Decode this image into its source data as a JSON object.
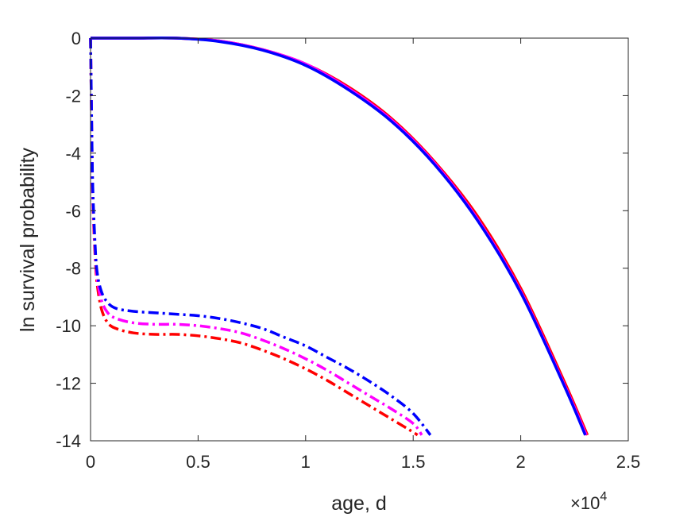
{
  "chart_data": {
    "type": "line",
    "title": "",
    "xlabel": "age, d",
    "ylabel": "ln survival probability",
    "x_exponent_label": "×10",
    "x_exponent_power": "4",
    "xlim": [
      0,
      25000
    ],
    "ylim": [
      -14,
      0
    ],
    "grid": false,
    "legend": "none",
    "xtick_labels": [
      "0",
      "0.5",
      "1",
      "1.5",
      "2",
      "2.5"
    ],
    "xtick_values": [
      0,
      5000,
      10000,
      15000,
      20000,
      25000
    ],
    "ytick_labels": [
      "0",
      "-2",
      "-4",
      "-6",
      "-8",
      "-10",
      "-12",
      "-14"
    ],
    "ytick_values": [
      0,
      -2,
      -4,
      -6,
      -8,
      -10,
      -12,
      -14
    ],
    "series": [
      {
        "color": "#ff0000",
        "style": "solid",
        "x": [
          0,
          2000,
          4000,
          6000,
          8000,
          10000,
          12000,
          14000,
          16000,
          18000,
          20000,
          22000,
          23100
        ],
        "y": [
          0,
          0,
          0,
          -0.1,
          -0.4,
          -0.9,
          -1.7,
          -2.8,
          -4.3,
          -6.2,
          -8.7,
          -11.9,
          -13.8
        ]
      },
      {
        "color": "#ff00ff",
        "style": "solid",
        "x": [
          0,
          2000,
          4000,
          6000,
          8000,
          10000,
          12000,
          14000,
          16000,
          18000,
          20000,
          22000,
          23050
        ],
        "y": [
          0,
          0,
          0,
          -0.1,
          -0.4,
          -0.9,
          -1.75,
          -2.85,
          -4.35,
          -6.3,
          -8.8,
          -12.0,
          -13.8
        ]
      },
      {
        "color": "#0000ff",
        "style": "solid",
        "x": [
          0,
          2000,
          4000,
          6000,
          8000,
          10000,
          12000,
          14000,
          16000,
          18000,
          20000,
          22000,
          23000
        ],
        "y": [
          0,
          0,
          0,
          -0.12,
          -0.42,
          -0.95,
          -1.8,
          -2.9,
          -4.4,
          -6.35,
          -8.85,
          -12.05,
          -13.8
        ]
      },
      {
        "color": "#ff0000",
        "style": "dashdot",
        "x": [
          0,
          50,
          100,
          200,
          300,
          500,
          800,
          1200,
          2000,
          3000,
          4000,
          5000,
          6000,
          7000,
          8000,
          9000,
          10000,
          11000,
          12000,
          13000,
          14000,
          15000,
          15200
        ],
        "y": [
          0,
          -3.0,
          -5.5,
          -7.4,
          -8.5,
          -9.4,
          -9.9,
          -10.1,
          -10.25,
          -10.3,
          -10.3,
          -10.35,
          -10.45,
          -10.6,
          -10.85,
          -11.15,
          -11.5,
          -11.9,
          -12.35,
          -12.8,
          -13.25,
          -13.7,
          -13.8
        ]
      },
      {
        "color": "#ff00ff",
        "style": "dashdot",
        "x": [
          0,
          50,
          100,
          200,
          300,
          500,
          800,
          1200,
          2000,
          3000,
          4000,
          5000,
          6000,
          7000,
          8000,
          9000,
          10000,
          11000,
          12000,
          13000,
          14000,
          15000,
          15400
        ],
        "y": [
          0,
          -2.9,
          -5.3,
          -7.2,
          -8.3,
          -9.1,
          -9.55,
          -9.75,
          -9.9,
          -9.95,
          -9.95,
          -10.0,
          -10.1,
          -10.25,
          -10.5,
          -10.8,
          -11.15,
          -11.55,
          -12.0,
          -12.45,
          -12.9,
          -13.4,
          -13.8
        ]
      },
      {
        "color": "#0000ff",
        "style": "dashdot",
        "x": [
          0,
          50,
          100,
          200,
          300,
          500,
          800,
          1200,
          2000,
          3000,
          4000,
          5000,
          6000,
          7000,
          8000,
          9000,
          10000,
          11000,
          12000,
          13000,
          14000,
          15000,
          15800
        ],
        "y": [
          0,
          -2.8,
          -5.1,
          -7.0,
          -8.1,
          -8.8,
          -9.2,
          -9.4,
          -9.5,
          -9.55,
          -9.6,
          -9.65,
          -9.75,
          -9.9,
          -10.1,
          -10.4,
          -10.7,
          -11.1,
          -11.5,
          -11.95,
          -12.45,
          -13.05,
          -13.8
        ]
      }
    ]
  }
}
